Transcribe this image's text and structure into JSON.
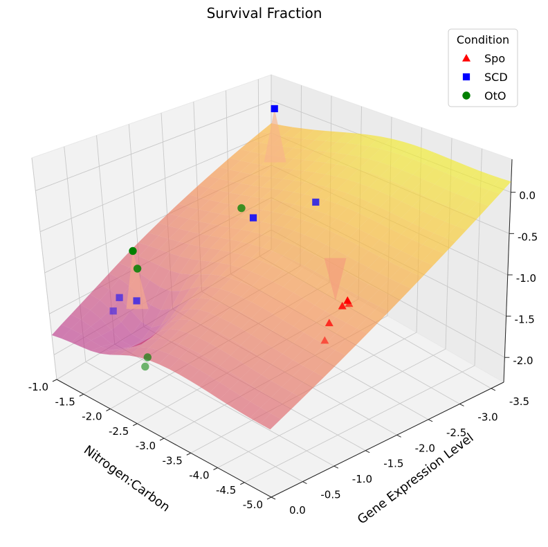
{
  "chart_data": {
    "type": "surface3d",
    "title": "Survival Fraction",
    "xlabel": "Nitrogen:Carbon",
    "ylabel": "Gene Expression Level",
    "zlabel": "",
    "xlim": [
      -5.0,
      -1.0
    ],
    "ylim": [
      -3.7,
      0.0
    ],
    "zlim": [
      -2.3,
      0.4
    ],
    "x_ticks": [
      "-1.0",
      "-1.5",
      "-2.0",
      "-2.5",
      "-3.0",
      "-3.5",
      "-4.0",
      "-4.5",
      "-5.0"
    ],
    "y_ticks": [
      "0.0",
      "-0.5",
      "-1.0",
      "-1.5",
      "-2.0",
      "-2.5",
      "-3.0",
      "-3.5"
    ],
    "z_ticks": [
      "0.0",
      "-0.5",
      "-1.0",
      "-1.5",
      "-2.0"
    ],
    "surface_colormap": "plasma",
    "grid": true,
    "legend_title": "Condition",
    "legend_placement": "top-right",
    "series": [
      {
        "name": "Spo",
        "marker": "triangle",
        "color": "#ff0000",
        "points": [
          {
            "x": -3.9,
            "y": -2.2,
            "z": -1.05
          },
          {
            "x": -3.7,
            "y": -2.3,
            "z": -1.25
          },
          {
            "x": -3.8,
            "y": -2.0,
            "z": -1.3
          },
          {
            "x": -3.6,
            "y": -2.5,
            "z": -1.35
          },
          {
            "x": -3.5,
            "y": -2.2,
            "z": -1.75
          }
        ]
      },
      {
        "name": "SCD",
        "marker": "square",
        "color": "#0000ff",
        "points": [
          {
            "x": -1.7,
            "y": -3.1,
            "z": 0.35
          },
          {
            "x": -2.4,
            "y": -2.1,
            "z": -0.5
          },
          {
            "x": -2.6,
            "y": -2.9,
            "z": -0.55
          },
          {
            "x": -1.6,
            "y": -0.9,
            "z": -1.45
          },
          {
            "x": -1.4,
            "y": -0.8,
            "z": -1.45
          },
          {
            "x": -1.5,
            "y": -0.6,
            "z": -1.5
          }
        ]
      },
      {
        "name": "OtO",
        "marker": "circle",
        "color": "#008000",
        "points": [
          {
            "x": -1.6,
            "y": -0.9,
            "z": -0.8
          },
          {
            "x": -1.6,
            "y": -0.95,
            "z": -1.05
          },
          {
            "x": -2.2,
            "y": -2.1,
            "z": -0.45
          },
          {
            "x": -1.9,
            "y": -0.75,
            "z": -2.0
          },
          {
            "x": -1.9,
            "y": -0.7,
            "z": -2.1
          }
        ]
      }
    ]
  }
}
